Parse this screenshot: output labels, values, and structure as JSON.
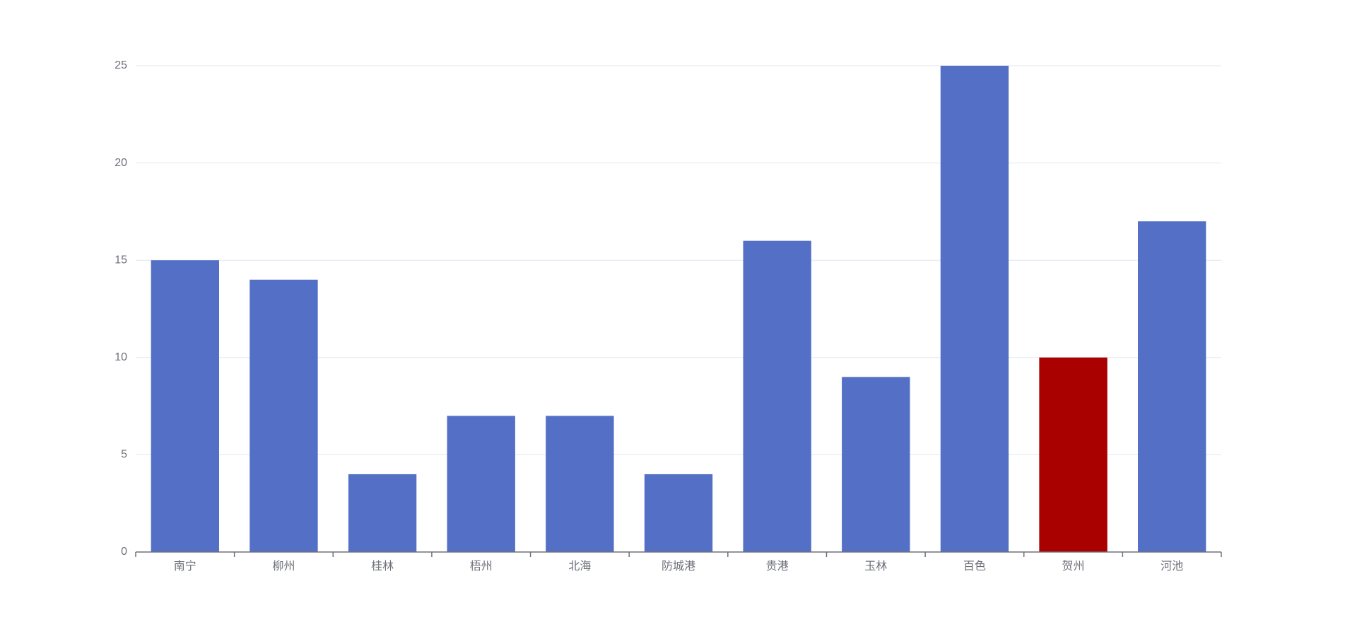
{
  "chart_data": {
    "type": "bar",
    "categories": [
      "南宁",
      "柳州",
      "桂林",
      "梧州",
      "北海",
      "防城港",
      "贵港",
      "玉林",
      "百色",
      "贺州",
      "河池"
    ],
    "values": [
      15,
      14,
      4,
      7,
      7,
      4,
      16,
      9,
      25,
      10,
      17
    ],
    "colors": [
      "#5470c6",
      "#5470c6",
      "#5470c6",
      "#5470c6",
      "#5470c6",
      "#5470c6",
      "#5470c6",
      "#5470c6",
      "#5470c6",
      "#a90000",
      "#5470c6"
    ],
    "ylim": [
      0,
      25
    ],
    "yticks": [
      0,
      5,
      10,
      15,
      20,
      25
    ],
    "grid": true
  }
}
